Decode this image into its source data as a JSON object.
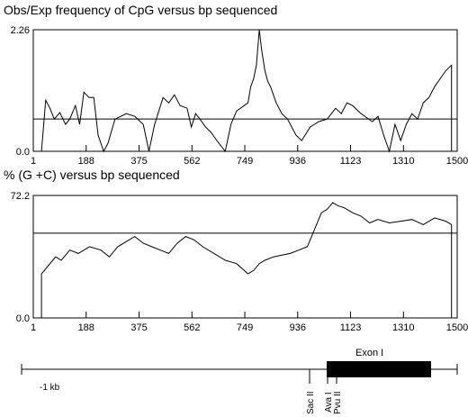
{
  "chart_data": [
    {
      "type": "line",
      "title": "Obs/Exp frequency of CpG versus bp sequenced",
      "xlim": [
        1,
        1500
      ],
      "ylim": [
        0.0,
        2.26
      ],
      "xticks": [
        1,
        188,
        375,
        562,
        749,
        936,
        1123,
        1310,
        1500
      ],
      "xtick_labels": [
        "1",
        "188",
        "375",
        "562",
        "749",
        "936",
        "1123",
        "1310",
        "1500"
      ],
      "yticks": [
        0.0,
        2.26
      ],
      "ytick_labels": [
        "0.0",
        "2.26"
      ],
      "threshold": 0.6,
      "series": [
        {
          "x": [
            30,
            45,
            60,
            75,
            95,
            115,
            130,
            150,
            165,
            180,
            198,
            215,
            230,
            250,
            265,
            290,
            330,
            360,
            390,
            410,
            430,
            460,
            480,
            500,
            520,
            545,
            560,
            575,
            590,
            610,
            630,
            650,
            680,
            700,
            720,
            760,
            770,
            780,
            790,
            800,
            808,
            820,
            830,
            840,
            860,
            880,
            900,
            930,
            950,
            980,
            1010,
            1040,
            1070,
            1090,
            1110,
            1130,
            1160,
            1200,
            1220,
            1240,
            1260,
            1280,
            1300,
            1320,
            1340,
            1360,
            1380,
            1400,
            1420,
            1440,
            1460,
            1480
          ],
          "y": [
            0.0,
            0.95,
            0.8,
            0.6,
            0.72,
            0.5,
            0.6,
            0.85,
            0.5,
            1.1,
            1.0,
            1.0,
            0.3,
            0.0,
            0.15,
            0.6,
            0.7,
            0.65,
            0.5,
            0.0,
            0.5,
            1.0,
            0.9,
            1.05,
            0.85,
            0.8,
            0.45,
            0.7,
            0.6,
            0.45,
            0.35,
            0.2,
            0.0,
            0.5,
            0.75,
            0.9,
            1.2,
            1.35,
            1.6,
            2.26,
            1.9,
            1.5,
            1.3,
            1.2,
            0.9,
            0.7,
            0.6,
            0.3,
            0.2,
            0.45,
            0.55,
            0.6,
            0.8,
            0.7,
            0.9,
            0.85,
            0.7,
            0.55,
            0.65,
            0.3,
            0.0,
            0.5,
            0.2,
            0.5,
            0.7,
            0.6,
            0.9,
            1.0,
            1.2,
            1.35,
            1.5,
            1.6
          ]
        }
      ]
    },
    {
      "type": "line",
      "title": "% (G +C) versus bp sequenced",
      "xlim": [
        1,
        1500
      ],
      "ylim": [
        0.0,
        72.2
      ],
      "xticks": [
        1,
        188,
        375,
        562,
        749,
        936,
        1123,
        1310,
        1500
      ],
      "xtick_labels": [
        "1",
        "188",
        "375",
        "562",
        "749",
        "936",
        "1123",
        "1310",
        "1500"
      ],
      "yticks": [
        0.0,
        72.2
      ],
      "ytick_labels": [
        "0.0",
        "72.2"
      ],
      "threshold": 50,
      "series": [
        {
          "x": [
            30,
            50,
            80,
            100,
            130,
            160,
            200,
            240,
            270,
            300,
            330,
            360,
            390,
            420,
            450,
            480,
            510,
            540,
            570,
            600,
            640,
            680,
            720,
            760,
            780,
            800,
            820,
            850,
            880,
            910,
            940,
            970,
            1000,
            1020,
            1040,
            1060,
            1080,
            1100,
            1130,
            1160,
            1190,
            1220,
            1260,
            1300,
            1340,
            1380,
            1420,
            1460,
            1480
          ],
          "y": [
            26,
            30,
            36,
            34,
            40,
            38,
            42,
            40,
            36,
            42,
            45,
            48,
            44,
            42,
            40,
            38,
            44,
            48,
            46,
            42,
            38,
            34,
            32,
            26,
            28,
            32,
            34,
            36,
            37,
            38,
            40,
            42,
            54,
            62,
            64,
            68,
            66,
            65,
            62,
            60,
            56,
            58,
            56,
            57,
            58,
            55,
            59,
            57,
            55
          ]
        }
      ]
    }
  ],
  "map": {
    "start_label": "-1 kb",
    "exon_label": "Exon I",
    "sites": [
      {
        "name": "Sac II"
      },
      {
        "name": "Ava I"
      },
      {
        "name": "Pvu II"
      }
    ]
  }
}
